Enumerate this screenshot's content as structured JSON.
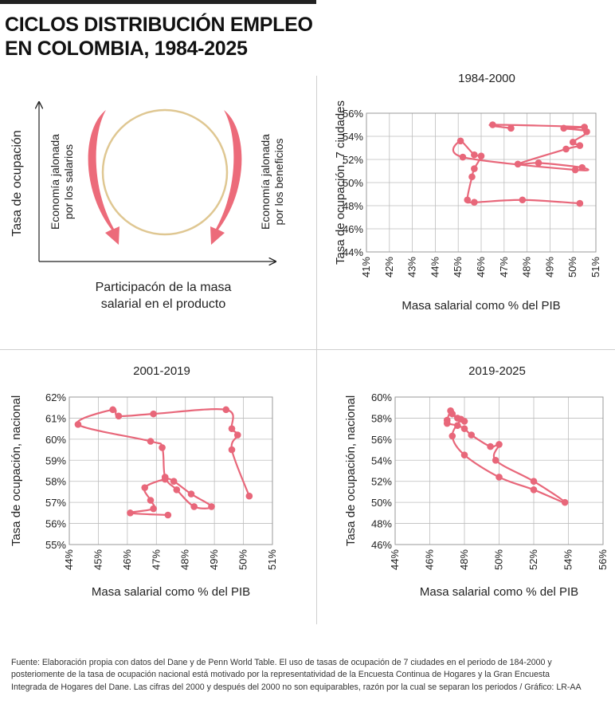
{
  "title_line1": "CICLOS DISTRIBUCIÓN EMPLEO",
  "title_line2": "EN COLOMBIA, 1984-2025",
  "diagram": {
    "y_axis_label": "Tasa de ocupación",
    "x_axis_label_line1": "Participacón de la masa",
    "x_axis_label_line2": "salarial en el producto",
    "left_label_line1": "Economía jalonada",
    "left_label_line2": "por los salarios",
    "right_label_line1": "Economía jalonada",
    "right_label_line2": "por los beneficios"
  },
  "colors": {
    "series": "#e8677a",
    "circle": "#dfc792",
    "arrow": "#ec6b7a"
  },
  "footnote_lines": [
    "Fuente: Elaboración propia con datos del Dane y de Penn World Table. El uso de tasas de ocupación de 7 ciudades en el periodo de 184-2000 y",
    "posteriomente de la tasa de ocupación nacional está motivado por la representatividad de la Encuesta Continua de Hogares y la Gran Encuesta",
    "Integrada de Hogares del Dane. Las cifras del 2000 y después del 2000 no son equiparables, razón por la cual se separan los periodos / Gráfico: LR-AA"
  ],
  "chart_data": [
    {
      "type": "line",
      "title": "1984-2000",
      "xlabel": "Masa salarial como % del PIB",
      "ylabel": "Tasa de ocupación, 7 ciudades",
      "xlim": [
        41,
        51
      ],
      "ylim": [
        44,
        56
      ],
      "x_ticks": [
        "41%",
        "42%",
        "43%",
        "44%",
        "45%",
        "46%",
        "47%",
        "48%",
        "49%",
        "50%",
        "51%"
      ],
      "y_ticks": [
        "44%",
        "46%",
        "48%",
        "50%",
        "52%",
        "54%",
        "56%"
      ],
      "grid": true,
      "x": [
        47.3,
        46.5,
        50.5,
        49.6,
        50.6,
        50.0,
        50.3,
        49.7,
        47.6,
        48.5,
        50.4,
        50.1,
        45.2,
        45.1,
        45.7,
        46.0,
        45.7,
        45.6,
        45.4,
        45.7,
        47.8,
        50.3
      ],
      "y": [
        54.7,
        55.0,
        54.8,
        54.7,
        54.4,
        53.5,
        53.2,
        52.9,
        51.6,
        51.7,
        51.3,
        51.1,
        52.2,
        53.6,
        52.4,
        52.3,
        51.2,
        50.5,
        48.5,
        48.3,
        48.5,
        48.2
      ]
    },
    {
      "type": "line",
      "title": "2001-2019",
      "xlabel": "Masa salarial como % del PIB",
      "ylabel": "Tasa de ocupación, nacional",
      "xlim": [
        44,
        51
      ],
      "ylim": [
        55,
        62
      ],
      "x_ticks": [
        "44%",
        "45%",
        "46%",
        "47%",
        "48%",
        "49%",
        "50%",
        "51%"
      ],
      "y_ticks": [
        "55%",
        "56%",
        "57%",
        "58%",
        "59%",
        "60%",
        "61%",
        "62%"
      ],
      "grid": true,
      "x": [
        47.4,
        46.1,
        46.9,
        46.8,
        46.6,
        47.3,
        47.6,
        48.2,
        48.9,
        48.3,
        47.7,
        47.3,
        47.2,
        46.8,
        44.3,
        45.5,
        45.7,
        46.9,
        49.4,
        49.6,
        49.8,
        49.6,
        50.2
      ],
      "y": [
        56.4,
        56.5,
        56.7,
        57.1,
        57.7,
        58.1,
        58.0,
        57.4,
        56.8,
        56.8,
        57.6,
        58.2,
        59.6,
        59.9,
        60.7,
        61.4,
        61.1,
        61.2,
        61.4,
        60.5,
        60.2,
        59.5,
        57.3
      ]
    },
    {
      "type": "line",
      "title": "2019-2025",
      "xlabel": "Masa salarial como % del PIB",
      "ylabel": "Tasa de ocupación, nacional",
      "xlim": [
        44,
        56
      ],
      "ylim": [
        46,
        60
      ],
      "x_ticks": [
        "44%",
        "46%",
        "48%",
        "50%",
        "52%",
        "54%",
        "56%"
      ],
      "y_ticks": [
        "46%",
        "48%",
        "50%",
        "52%",
        "54%",
        "56%",
        "58%",
        "60%"
      ],
      "grid": true,
      "x": [
        48.0,
        47.6,
        47.3,
        47.2,
        47.0,
        47.0,
        47.6,
        48.0,
        48.4,
        49.5,
        50.0,
        49.8,
        52.0,
        53.8,
        52.0,
        50.0,
        48.0,
        47.3,
        47.8
      ],
      "y": [
        57.7,
        58.0,
        58.4,
        58.7,
        57.8,
        57.5,
        57.3,
        57.0,
        56.4,
        55.3,
        55.5,
        54.0,
        52.0,
        50.0,
        51.2,
        52.4,
        54.5,
        56.3,
        57.9
      ]
    }
  ]
}
